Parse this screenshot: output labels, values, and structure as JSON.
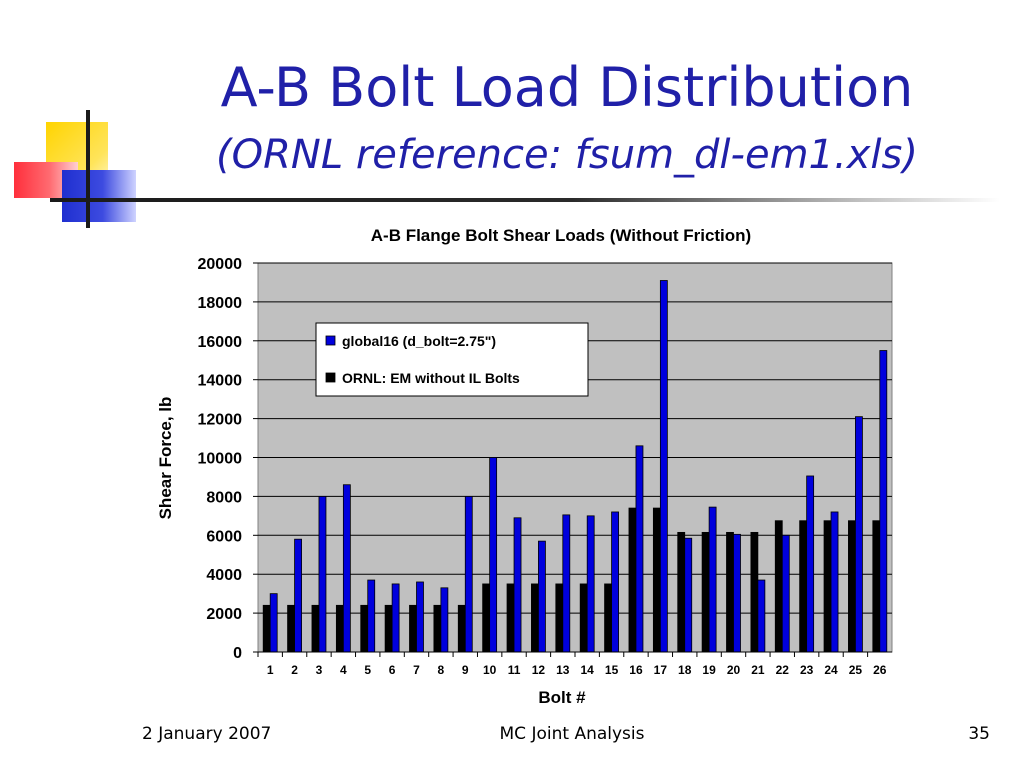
{
  "slide": {
    "title": "A-B Bolt Load Distribution",
    "subtitle": "(ORNL reference: fsum_dl-em1.xls)",
    "footer_left": "2 January 2007",
    "footer_center": "MC Joint Analysis",
    "footer_right": "35"
  },
  "colors": {
    "title": "#2020a8",
    "plot_bg": "#c0c0c0",
    "series_global16": "#0000dd",
    "series_ornl": "#000000"
  },
  "chart_data": {
    "type": "bar",
    "title": "A-B Flange Bolt Shear Loads (Without Friction)",
    "xlabel": "Bolt #",
    "ylabel": "Shear Force, lb",
    "ylim": [
      0,
      20000
    ],
    "yticks": [
      "0",
      "2000",
      "4000",
      "6000",
      "8000",
      "10000",
      "12000",
      "14000",
      "16000",
      "18000",
      "20000"
    ],
    "grid": true,
    "legend_position": "top-center",
    "categories": [
      "1",
      "2",
      "3",
      "4",
      "5",
      "6",
      "7",
      "8",
      "9",
      "10",
      "11",
      "12",
      "13",
      "14",
      "15",
      "16",
      "17",
      "18",
      "19",
      "20",
      "21",
      "22",
      "23",
      "24",
      "25",
      "26"
    ],
    "series": [
      {
        "name": "ORNL: EM without IL Bolts",
        "values": [
          2400,
          2400,
          2400,
          2400,
          2400,
          2400,
          2400,
          2400,
          2400,
          3500,
          3500,
          3500,
          3500,
          3500,
          3500,
          7400,
          7400,
          6150,
          6150,
          6150,
          6150,
          6750,
          6750,
          6750,
          6750,
          6750
        ]
      },
      {
        "name": "global16 (d_bolt=2.75\")",
        "values": [
          3000,
          5800,
          8000,
          8600,
          3700,
          3500,
          3600,
          3300,
          8000,
          10000,
          6900,
          5700,
          7050,
          7000,
          7200,
          10600,
          19100,
          5850,
          7450,
          6050,
          3700,
          6000,
          9050,
          7200,
          12100,
          15500
        ]
      }
    ]
  }
}
